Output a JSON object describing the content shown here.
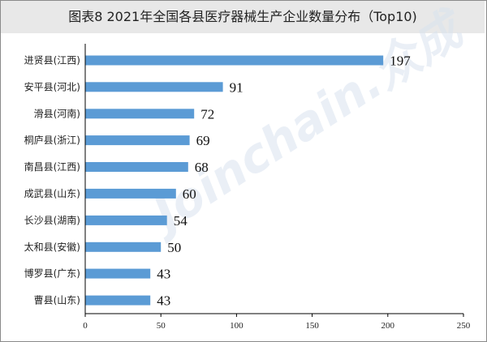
{
  "title": "图表8  2021年全国各县医疗器械生产企业数量分布（Top10)",
  "watermark": "Joinchain.众成",
  "colors": {
    "bar": "#5b9bd5",
    "axis": "#000000",
    "title_bg": "#e8e8e8"
  },
  "chart_data": {
    "type": "bar",
    "orientation": "horizontal",
    "title": "图表8  2021年全国各县医疗器械生产企业数量分布（Top10)",
    "categories": [
      "进贤县(江西)",
      "安平县(河北)",
      "滑县(河南)",
      "桐庐县(浙江)",
      "南昌县(江西)",
      "成武县(山东)",
      "长沙县(湖南)",
      "太和县(安徽)",
      "博罗县(广东)",
      "曹县(山东)"
    ],
    "values": [
      197,
      91,
      72,
      69,
      68,
      60,
      54,
      50,
      43,
      43
    ],
    "xlim": [
      0,
      250
    ],
    "xticks": [
      0,
      50,
      100,
      150,
      200,
      250
    ],
    "xlabel": "",
    "ylabel": "",
    "grid": false,
    "legend": "none",
    "data_labels": true
  }
}
